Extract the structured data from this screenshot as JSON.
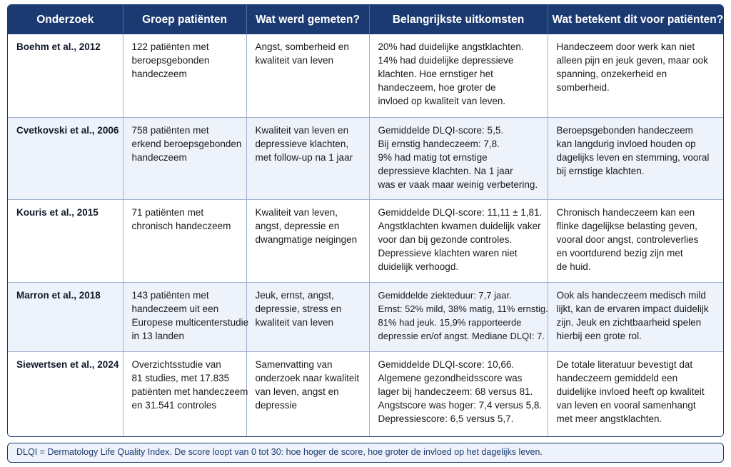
{
  "table": {
    "headers": [
      "Onderzoek",
      "Groep patiënten",
      "Wat werd gemeten?",
      "Belangrijkste uitkomsten",
      "Wat betekent dit voor patiënten?"
    ],
    "rows": [
      {
        "study": "Boehm et al., 2012",
        "group": [
          "122 patiënten met",
          "beroepsgebonden",
          "handeczeem"
        ],
        "measured": [
          "Angst, somberheid en",
          "kwaliteit van leven"
        ],
        "outcomes": [
          "20% had duidelijke angstklachten.",
          "14% had duidelijke depressieve",
          "klachten. Hoe ernstiger het",
          "handeczeem, hoe groter de",
          "invloed op kwaliteit van leven."
        ],
        "meaning": [
          "Handeczeem door werk kan niet",
          "alleen pijn en jeuk geven, maar ook",
          "spanning, onzekerheid en",
          "somberheid."
        ]
      },
      {
        "study": "Cvetkovski et al., 2006",
        "group": [
          "758 patiënten met",
          "erkend beroepsgebonden",
          "handeczeem"
        ],
        "measured": [
          "Kwaliteit van leven en",
          "depressieve klachten,",
          "met follow-up na 1 jaar"
        ],
        "outcomes": [
          "Gemiddelde DLQI-score: 5,5.",
          "Bij ernstig handeczeem: 7,8.",
          "9% had matig tot ernstige",
          "depressieve klachten. Na 1 jaar",
          "was er vaak maar weinig verbetering."
        ],
        "meaning": [
          "Beroepsgebonden handeczeem",
          "kan langdurig invloed houden op",
          "dagelijks leven en stemming, vooral",
          "bij ernstige klachten."
        ]
      },
      {
        "study": "Kouris et al., 2015",
        "group": [
          "71 patiënten met",
          "chronisch handeczeem"
        ],
        "measured": [
          "Kwaliteit van leven,",
          "angst, depressie en",
          "dwangmatige neigingen"
        ],
        "outcomes": [
          "Gemiddelde DLQI-score: 11,11 ± 1,81.",
          "Angstklachten kwamen duidelijk vaker",
          "voor dan bij gezonde controles.",
          "Depressieve klachten waren niet",
          "duidelijk verhoogd."
        ],
        "meaning": [
          "Chronisch handeczeem kan een",
          "flinke dagelijkse belasting geven,",
          "vooral door angst, controleverlies",
          "en voortdurend bezig zijn met",
          "de huid."
        ]
      },
      {
        "study": "Marron et al., 2018",
        "group": [
          "143 patiënten met",
          "handeczeem uit een",
          "Europese multicenterstudie",
          "in 13 landen"
        ],
        "measured": [
          "Jeuk, ernst, angst,",
          "depressie, stress en",
          "kwaliteit van leven"
        ],
        "outcomes": [
          "Gemiddelde ziekteduur: 7,7 jaar.",
          "Ernst: 52% mild, 38% matig, 11% ernstig.",
          "81% had jeuk. 15,9% rapporteerde",
          "depressie en/of angst. Mediane DLQI: 7."
        ],
        "meaning": [
          "Ook als handeczeem medisch mild",
          "lijkt, kan de ervaren impact duidelijk",
          "zijn. Jeuk en zichtbaarheid spelen",
          "hierbij een grote rol."
        ]
      },
      {
        "study": "Siewertsen et al., 2024",
        "group": [
          "Overzichtsstudie van",
          "81 studies, met 17.835",
          "patiënten met handeczeem",
          "en 31.541 controles"
        ],
        "measured": [
          "Samenvatting van",
          "onderzoek naar kwaliteit",
          "van leven, angst en",
          "depressie"
        ],
        "outcomes": [
          "Gemiddelde DLQI-score: 10,66.",
          "Algemene gezondheidsscore was",
          "lager bij handeczeem: 68 versus 81.",
          "Angstscore was hoger: 7,4 versus 5,8.",
          "Depressiescore: 6,5 versus 5,7."
        ],
        "meaning": [
          "De totale literatuur bevestigt dat",
          "handeczeem gemiddeld een",
          "duidelijke invloed heeft op kwaliteit",
          "van leven en vooral samenhangt",
          "met meer angstklachten."
        ]
      }
    ]
  },
  "footnote": "DLQI = Dermatology Life Quality Index. De score loopt van 0 tot 30: hoe hoger de score, hoe groter de invloed op het dagelijks leven.",
  "colors": {
    "header_bg": "#1c3a72",
    "row_alt_bg": "#eef3fb",
    "border": "#9fb0cf"
  }
}
